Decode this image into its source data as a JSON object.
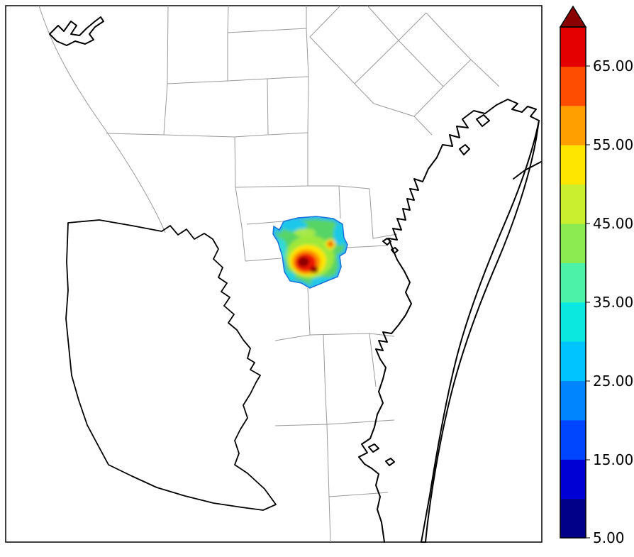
{
  "figure": {
    "kind": "gridded concentration heatmap over coastal county map",
    "background_color": "#ffffff",
    "border_color": "#000000"
  },
  "colorbar": {
    "orientation": "vertical",
    "over_color": "#8b0000",
    "outline_color": "#000000",
    "ticks": [
      {
        "label": "65.00",
        "value": 65
      },
      {
        "label": "55.00",
        "value": 55
      },
      {
        "label": "45.00",
        "value": 45
      },
      {
        "label": "35.00",
        "value": 35
      },
      {
        "label": "25.00",
        "value": 25
      },
      {
        "label": "15.00",
        "value": 15
      },
      {
        "label": "5.00",
        "value": 5
      }
    ],
    "segments": [
      {
        "from": 5,
        "to": 10,
        "color": "#000089"
      },
      {
        "from": 10,
        "to": 15,
        "color": "#0000d4"
      },
      {
        "from": 15,
        "to": 20,
        "color": "#0045ff"
      },
      {
        "from": 20,
        "to": 25,
        "color": "#0085ff"
      },
      {
        "from": 25,
        "to": 30,
        "color": "#00c4ff"
      },
      {
        "from": 30,
        "to": 35,
        "color": "#0ae8e0"
      },
      {
        "from": 35,
        "to": 40,
        "color": "#4cf2a8"
      },
      {
        "from": 40,
        "to": 45,
        "color": "#8ceb50"
      },
      {
        "from": 45,
        "to": 50,
        "color": "#c9ef2e"
      },
      {
        "from": 50,
        "to": 55,
        "color": "#ffe600"
      },
      {
        "from": 55,
        "to": 60,
        "color": "#ffa000"
      },
      {
        "from": 60,
        "to": 65,
        "color": "#ff4d00"
      },
      {
        "from": 65,
        "to": 70,
        "color": "#e50000"
      }
    ]
  },
  "chart_data": {
    "type": "heatmap",
    "title": "",
    "xlabel": "",
    "ylabel": "",
    "legend_position": "right colorbar",
    "colorbar": {
      "tick_values": [
        5,
        15,
        25,
        35,
        45,
        55,
        65
      ],
      "tick_labels": [
        "5.00",
        "15.00",
        "25.00",
        "35.00",
        "45.00",
        "55.00",
        "65.00"
      ],
      "value_range": [
        5,
        70
      ],
      "has_over_arrow": true,
      "over_color": "#8b0000",
      "colormap": "jet-like, discrete 5-unit bands from dark blue to dark red"
    },
    "data_region": {
      "description": "Single irregular county-shaped data patch near map center (approx. x 385-490, y 305-407 px). Edge band of blue/cyan (~20-30), interior mostly green to yellow-green (~35-45), broad yellow/orange ring (~50-60) around a dark-red double-lobed hotspot exceeding 65, plus a small secondary orange/red maximum (~55-65) near the patch's northeast corner.",
      "hotspot_peak": "> 65 (over-range, dark red)",
      "secondary_spot": "55-65",
      "background_values": "30-45"
    },
    "basemap": "Texas Gulf Coast style map: thin gray county boundaries, thick black coastline with bays and long barrier island, thick-outlined inland region to the southwest of the data patch, small jagged reservoir at top-left"
  }
}
